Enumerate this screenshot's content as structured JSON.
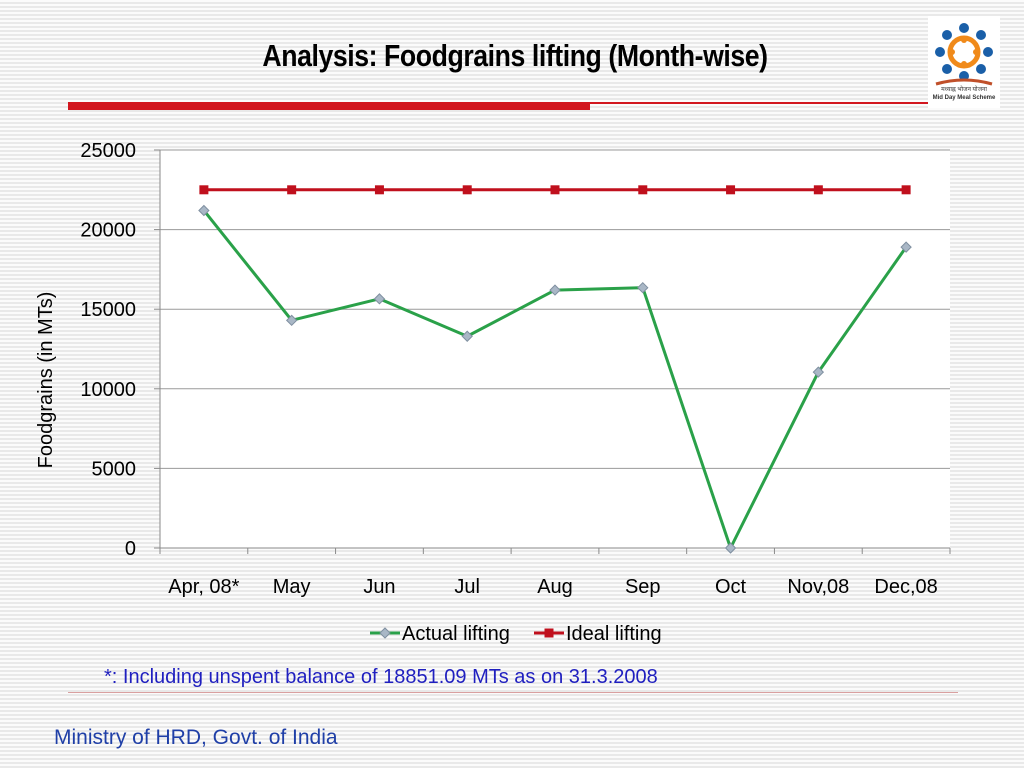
{
  "header": {
    "title": "Analysis: Foodgrains lifting (Month-wise)",
    "logo_caption_1": "मध्याह्न भोजन योजना",
    "logo_caption_2": "Mid Day Meal Scheme"
  },
  "colors": {
    "accent_bar": "#d2171f",
    "actual_series": "#2aa149",
    "ideal_series": "#c0101d",
    "footnote_text": "#1f1fbf",
    "ministry_text": "#1f3fa7"
  },
  "chart_data": {
    "type": "line",
    "title": "",
    "xlabel": "",
    "ylabel": "Foodgrains (in MTs)",
    "categories": [
      "Apr, 08*",
      "May",
      "Jun",
      "Jul",
      "Aug",
      "Sep",
      "Oct",
      "Nov,08",
      "Dec,08"
    ],
    "ylim": [
      0,
      25000
    ],
    "yticks": [
      0,
      5000,
      10000,
      15000,
      20000,
      25000
    ],
    "grid": "horizontal",
    "legend": "bottom",
    "series": [
      {
        "name": "Actual lifting",
        "color": "#2aa149",
        "marker": "diamond",
        "values": [
          21200,
          14300,
          15650,
          13300,
          16200,
          16350,
          0,
          11050,
          18900
        ]
      },
      {
        "name": "Ideal lifting",
        "color": "#c0101d",
        "marker": "square",
        "values": [
          22500,
          22500,
          22500,
          22500,
          22500,
          22500,
          22500,
          22500,
          22500
        ]
      }
    ]
  },
  "footer": {
    "footnote": "*: Including unspent balance of 18851.09 MTs as on 31.3.2008",
    "ministry": "Ministry of HRD, Govt. of India"
  }
}
